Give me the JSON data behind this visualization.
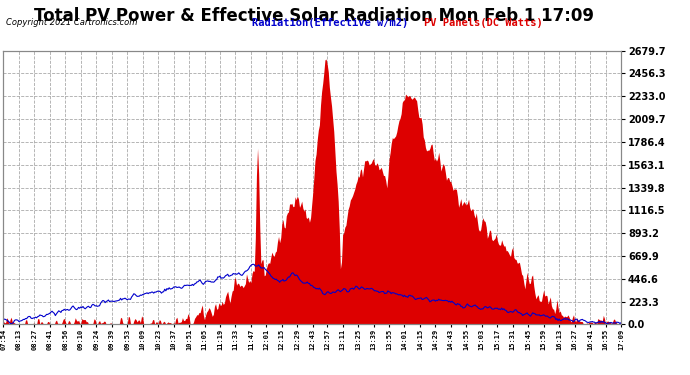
{
  "title": "Total PV Power & Effective Solar Radiation Mon Feb 1 17:09",
  "copyright": "Copyright 2021 Cartronics.com",
  "legend_radiation": "Radiation(Effective w/m2)",
  "legend_pv": "PV Panels(DC Watts)",
  "yticks": [
    0.0,
    223.3,
    446.6,
    669.9,
    893.2,
    1116.5,
    1339.8,
    1563.1,
    1786.4,
    2009.7,
    2233.0,
    2456.3,
    2679.7
  ],
  "ymax": 2679.7,
  "ymin": 0.0,
  "background_color": "#ffffff",
  "plot_bg_color": "#ffffff",
  "grid_color": "#aaaaaa",
  "radiation_color": "#0000cc",
  "pv_fill_color": "#dd0000",
  "title_fontsize": 12,
  "x_labels": [
    "07:54",
    "08:13",
    "08:27",
    "08:41",
    "08:56",
    "09:10",
    "09:24",
    "09:39",
    "09:53",
    "10:09",
    "10:23",
    "10:37",
    "10:51",
    "11:05",
    "11:19",
    "11:33",
    "11:47",
    "12:01",
    "12:15",
    "12:29",
    "12:43",
    "12:57",
    "13:11",
    "13:25",
    "13:39",
    "13:55",
    "14:01",
    "14:15",
    "14:29",
    "14:43",
    "14:55",
    "15:03",
    "15:17",
    "15:31",
    "15:45",
    "15:59",
    "16:13",
    "16:27",
    "16:41",
    "16:55",
    "17:09"
  ],
  "n_points": 560
}
